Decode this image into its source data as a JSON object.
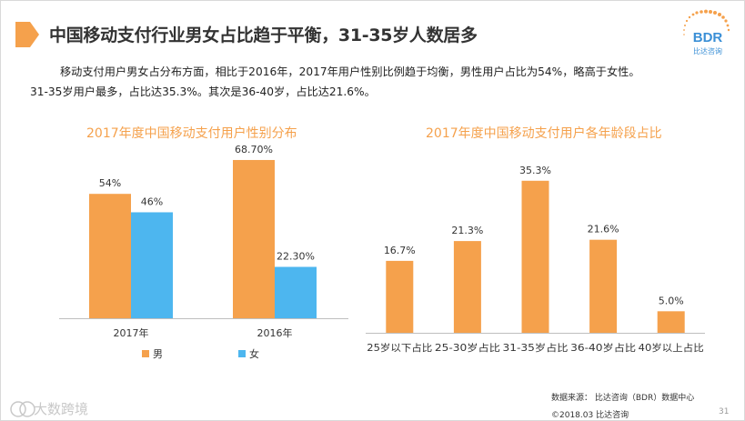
{
  "header": {
    "title": "中国移动支付行业男女占比趋于平衡，31-35岁人数居多",
    "logo_text": "BDR",
    "logo_subtext": "比达咨询"
  },
  "intro": {
    "line1": "移动支付用户男女占分布方面，相比于2016年，2017年用户性别比例趋于均衡，男性用户占比为54%，略高于女性。",
    "line2": "31-35岁用户最多，占比达35.3%。其次是36-40岁，占比达21.6%。"
  },
  "chart_data": [
    {
      "type": "bar",
      "title": "2017年度中国移动支付用户性别分布",
      "categories": [
        "2017年",
        "2016年"
      ],
      "series": [
        {
          "name": "男",
          "values": [
            54,
            68.7
          ],
          "labels": [
            "54%",
            "68.70%"
          ],
          "color": "#f5a14c"
        },
        {
          "name": "女",
          "values": [
            46,
            22.3
          ],
          "labels": [
            "46%",
            "22.30%"
          ],
          "color": "#4db6ef"
        }
      ],
      "xlabel": "",
      "ylabel": "",
      "ylim": [
        0,
        75
      ],
      "legend": "bottom",
      "grid": false
    },
    {
      "type": "bar",
      "title": "2017年度中国移动支付用户各年龄段占比",
      "categories": [
        "25岁以下占比",
        "25-30岁占比",
        "31-35岁占比",
        "36-40岁占比",
        "40岁以上占比"
      ],
      "values": [
        16.7,
        21.3,
        35.3,
        21.6,
        5.0
      ],
      "labels": [
        "16.7%",
        "21.3%",
        "35.3%",
        "21.6%",
        "5.0%"
      ],
      "color": "#f5a14c",
      "xlabel": "",
      "ylabel": "",
      "ylim": [
        0,
        38
      ],
      "grid": false
    }
  ],
  "footer": {
    "source": "数据来源： 比达咨询（BDR）数据中心",
    "copyright": "©2018.03 比达咨询",
    "page_number": "31",
    "watermark": "大数跨境"
  },
  "colors": {
    "accent": "#f5a14c",
    "secondary": "#4db6ef",
    "axis": "#bfbfbf"
  }
}
